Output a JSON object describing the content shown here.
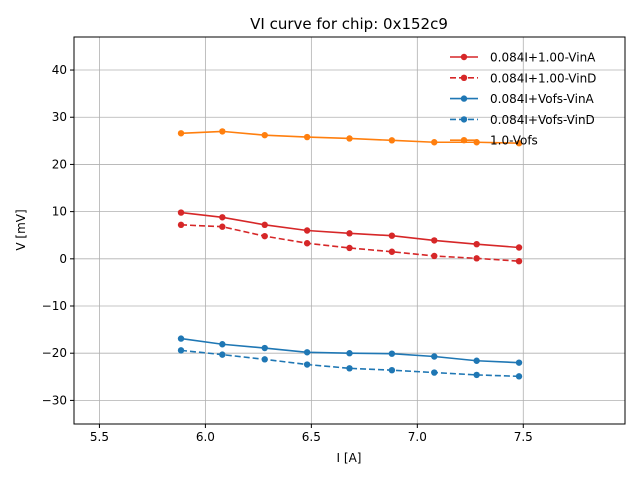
{
  "chart_data": {
    "type": "line",
    "title": "VI curve for chip: 0x152c9",
    "xlabel": "I [A]",
    "ylabel": "V [mV]",
    "xlim": [
      5.38,
      7.98
    ],
    "ylim": [
      -35,
      47
    ],
    "xticks": [
      5.5,
      6.0,
      6.5,
      7.0,
      7.5
    ],
    "xtick_labels": [
      "5.5",
      "6.0",
      "6.5",
      "7.0",
      "7.5"
    ],
    "yticks": [
      -30,
      -20,
      -10,
      0,
      10,
      20,
      30,
      40
    ],
    "ytick_labels": [
      "−30",
      "−20",
      "−10",
      "0",
      "10",
      "20",
      "30",
      "40"
    ],
    "grid": true,
    "legend_position": "top-right",
    "x": [
      5.885,
      6.08,
      6.28,
      6.48,
      6.68,
      6.88,
      7.08,
      7.28,
      7.48
    ],
    "series": [
      {
        "name": "0.084I+1.00-VinA",
        "color": "#d62728",
        "dash": false,
        "values": [
          9.8,
          8.8,
          7.2,
          6.0,
          5.4,
          4.9,
          3.9,
          3.1,
          2.4
        ]
      },
      {
        "name": "0.084I+1.00-VinD",
        "color": "#d62728",
        "dash": true,
        "values": [
          7.2,
          6.8,
          4.8,
          3.3,
          2.3,
          1.5,
          0.6,
          0.1,
          -0.5
        ]
      },
      {
        "name": "0.084I+Vofs-VinA",
        "color": "#1f77b4",
        "dash": false,
        "values": [
          -16.9,
          -18.1,
          -18.9,
          -19.8,
          -20.0,
          -20.1,
          -20.7,
          -21.6,
          -22.0
        ]
      },
      {
        "name": "0.084I+Vofs-VinD",
        "color": "#1f77b4",
        "dash": true,
        "values": [
          -19.4,
          -20.3,
          -21.3,
          -22.4,
          -23.2,
          -23.6,
          -24.1,
          -24.6,
          -24.9
        ]
      },
      {
        "name": "1.0-Vofs",
        "color": "#ff7f0e",
        "dash": false,
        "values": [
          26.6,
          27.0,
          26.2,
          25.8,
          25.5,
          25.1,
          24.7,
          24.7,
          24.5
        ]
      }
    ]
  }
}
